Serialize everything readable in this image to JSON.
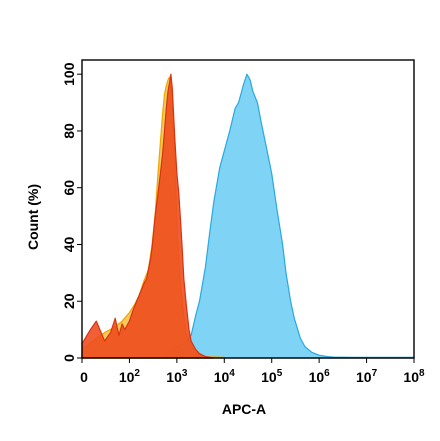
{
  "chart_data": {
    "type": "area",
    "title": "",
    "xlabel": "APC-A",
    "ylabel": "Count (%)",
    "x_scale": "log",
    "xlim": [
      10,
      100000000
    ],
    "ylim": [
      0,
      105
    ],
    "grid": false,
    "legend": "none",
    "y_ticks": [
      {
        "value": 0,
        "label": "0"
      },
      {
        "value": 20,
        "label": "20"
      },
      {
        "value": 40,
        "label": "40"
      },
      {
        "value": 60,
        "label": "60"
      },
      {
        "value": 80,
        "label": "80"
      },
      {
        "value": 100,
        "label": "100"
      }
    ],
    "x_ticks": [
      {
        "value": 10,
        "base": "0",
        "exp": ""
      },
      {
        "value": 100,
        "base": "10",
        "exp": "2"
      },
      {
        "value": 1000,
        "base": "10",
        "exp": "3"
      },
      {
        "value": 10000,
        "base": "10",
        "exp": "4"
      },
      {
        "value": 100000,
        "base": "10",
        "exp": "5"
      },
      {
        "value": 1000000,
        "base": "10",
        "exp": "6"
      },
      {
        "value": 10000000,
        "base": "10",
        "exp": "7"
      },
      {
        "value": 100000000,
        "base": "10",
        "exp": "8"
      }
    ],
    "series": [
      {
        "fill": "#7fd3f5",
        "stroke": "#29a8e0",
        "opacity": 1,
        "x": [
          100,
          500,
          800,
          1000,
          1400,
          2000,
          2500,
          3000,
          4000,
          5000,
          6000,
          8000,
          10000,
          13000,
          17000,
          20000,
          25000,
          30000,
          35000,
          40000,
          50000,
          60000,
          80000,
          100000,
          130000,
          170000,
          200000,
          250000,
          300000,
          400000,
          500000,
          700000,
          1000000,
          1500000,
          2000000,
          5000000,
          10000000,
          100000000
        ],
        "y": [
          0,
          0,
          2,
          4,
          5,
          8,
          15,
          20,
          32,
          45,
          55,
          67,
          73,
          80,
          88,
          90,
          96,
          100,
          98,
          94,
          90,
          83,
          73,
          65,
          52,
          40,
          30,
          20,
          14,
          7,
          4,
          2,
          1,
          0.5,
          0.3,
          0.2,
          0.2,
          0.2
        ]
      },
      {
        "fill": "#f3c13f",
        "stroke": "#f0a400",
        "opacity": 0.85,
        "x": [
          10,
          20,
          30,
          50,
          70,
          100,
          130,
          160,
          200,
          250,
          300,
          350,
          400,
          450,
          500,
          550,
          600,
          650,
          700,
          800,
          900,
          1000,
          1100,
          1200,
          1400,
          1600,
          2000,
          2500,
          3000,
          4000,
          10000
        ],
        "y": [
          3,
          7,
          9,
          11,
          13,
          16,
          19,
          22,
          27,
          31,
          40,
          51,
          65,
          76,
          86,
          93,
          96,
          98,
          99,
          92,
          70,
          48,
          35,
          25,
          15,
          8,
          4,
          2,
          1,
          0.5,
          0.2
        ]
      },
      {
        "fill": "#ee4a1d",
        "stroke": "#d7330f",
        "opacity": 0.88,
        "x": [
          10,
          15,
          20,
          30,
          40,
          50,
          60,
          70,
          80,
          100,
          120,
          150,
          180,
          200,
          230,
          250,
          280,
          300,
          350,
          400,
          450,
          500,
          550,
          600,
          650,
          700,
          750,
          800,
          900,
          1000,
          1100,
          1200,
          1300,
          1400,
          1600,
          1800,
          2000,
          2500,
          3000,
          4000,
          6000
        ],
        "y": [
          5,
          10,
          13,
          6,
          9,
          14,
          8,
          12,
          10,
          13,
          17,
          21,
          24,
          26,
          28,
          31,
          35,
          39,
          50,
          58,
          65,
          72,
          80,
          88,
          94,
          97,
          100,
          95,
          78,
          65,
          58,
          48,
          38,
          28,
          18,
          10,
          6,
          3,
          1.5,
          0.5,
          0
        ]
      }
    ]
  }
}
